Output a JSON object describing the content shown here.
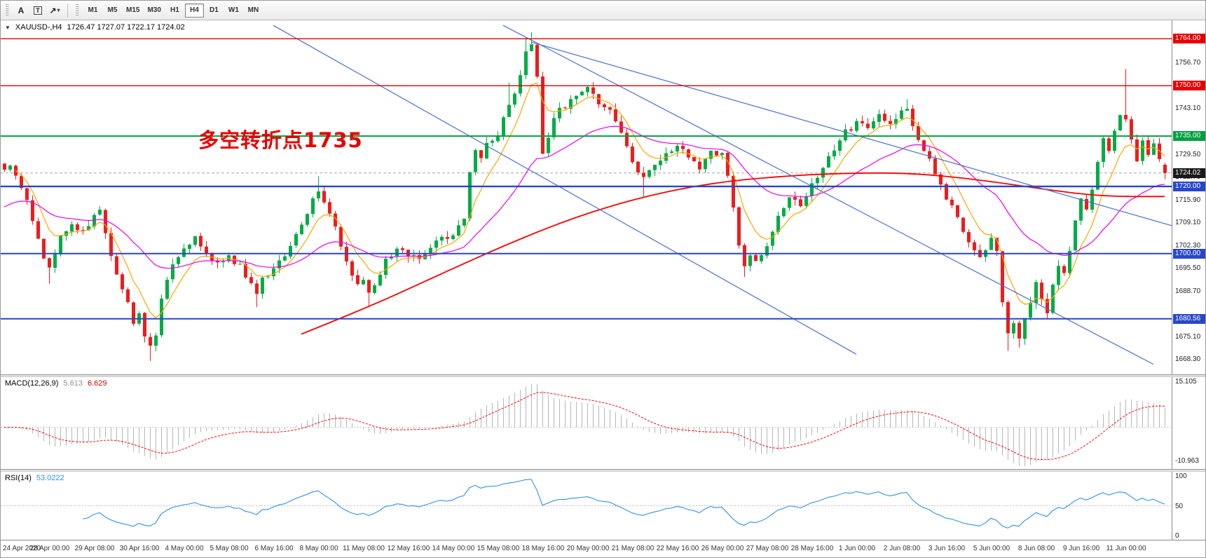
{
  "toolbar": {
    "tools": [
      {
        "name": "text-tool",
        "label": "A"
      },
      {
        "name": "label-tool",
        "label": "T"
      },
      {
        "name": "arrows-tool",
        "label": "↗"
      }
    ],
    "timeframes": [
      {
        "label": "M1"
      },
      {
        "label": "M5"
      },
      {
        "label": "M15"
      },
      {
        "label": "M30"
      },
      {
        "label": "H1"
      },
      {
        "label": "H4",
        "active": true
      },
      {
        "label": "D1"
      },
      {
        "label": "W1"
      },
      {
        "label": "MN"
      }
    ]
  },
  "chart": {
    "symbol_period": "XAUUSD-,H4",
    "ohlc_text": "1726.47 1727.07 1722.17 1724.02",
    "annotation": {
      "text": "多空转折点1735",
      "color": "#e80000"
    },
    "scale": {
      "price_min": 1664.0,
      "price_max": 1769.5
    },
    "colors": {
      "candle_up": "#00ad45",
      "candle_down": "#ee1c1c",
      "ma_fast": "#ffa500",
      "ma_mid": "#ee00ee",
      "ma_slow": "#ff0000",
      "trendline": "#4a6fd0",
      "macd_hist": "#b6b6b6",
      "macd_signal": "#ff0000",
      "rsi_line": "#3090e8"
    },
    "levels": [
      {
        "price": 1764.0,
        "label": "1764.00",
        "color": "#e60000",
        "width": 1.4
      },
      {
        "price": 1750.0,
        "label": "1750.00",
        "color": "#e60000",
        "width": 1.4
      },
      {
        "price": 1735.0,
        "label": "1735.00",
        "color": "#00a040",
        "width": 2
      },
      {
        "price": 1720.0,
        "label": "1720.00",
        "color": "#2847c8",
        "width": 2.4
      },
      {
        "price": 1700.0,
        "label": "1700.00",
        "color": "#2847c8",
        "width": 2
      },
      {
        "price": 1680.56,
        "label": "1680.56",
        "color": "#2847c8",
        "width": 2
      }
    ],
    "bid": {
      "price": 1724.02,
      "label": "1724.02",
      "color": "#1a1a1a"
    },
    "trendlines": [
      {
        "i1": 48,
        "p1": 1768,
        "i2": 152,
        "p2": 1670
      },
      {
        "i1": 89,
        "p1": 1768,
        "i2": 205,
        "p2": 1667
      },
      {
        "i1": 94,
        "p1": 1763,
        "i2": 211,
        "p2": 1707
      }
    ],
    "axis": {
      "price_ticks": [
        1756.7,
        1743.1,
        1729.5,
        1722.7,
        1715.9,
        1709.1,
        1702.3,
        1695.5,
        1688.7,
        1675.1,
        1668.3
      ],
      "time_labels": [
        {
          "index": 0,
          "label": "24 Apr 2020"
        },
        {
          "index": 8,
          "label": "28 Apr 00:00"
        },
        {
          "index": 16,
          "label": "29 Apr 08:00"
        },
        {
          "index": 24,
          "label": "30 Apr 16:00"
        },
        {
          "index": 32,
          "label": "4 May 00:00"
        },
        {
          "index": 40,
          "label": "5 May 08:00"
        },
        {
          "index": 48,
          "label": "6 May 16:00"
        },
        {
          "index": 56,
          "label": "8 May 00:00"
        },
        {
          "index": 64,
          "label": "11 May 08:00"
        },
        {
          "index": 72,
          "label": "12 May 16:00"
        },
        {
          "index": 80,
          "label": "14 May 00:00"
        },
        {
          "index": 88,
          "label": "15 May 08:00"
        },
        {
          "index": 96,
          "label": "18 May 16:00"
        },
        {
          "index": 104,
          "label": "20 May 00:00"
        },
        {
          "index": 112,
          "label": "21 May 08:00"
        },
        {
          "index": 120,
          "label": "22 May 16:00"
        },
        {
          "index": 128,
          "label": "26 May 00:00"
        },
        {
          "index": 136,
          "label": "27 May 08:00"
        },
        {
          "index": 144,
          "label": "28 May 16:00"
        },
        {
          "index": 152,
          "label": "1 Jun 00:00"
        },
        {
          "index": 160,
          "label": "2 Jun 08:00"
        },
        {
          "index": 168,
          "label": "3 Jun 16:00"
        },
        {
          "index": 176,
          "label": "5 Jun 00:00"
        },
        {
          "index": 184,
          "label": "8 Jun 08:00"
        },
        {
          "index": 192,
          "label": "9 Jun 16:00"
        },
        {
          "index": 200,
          "label": "11 Jun 00:00"
        }
      ]
    }
  },
  "macd": {
    "name": "MACD(12,26,9)",
    "value_hist": "5.613",
    "value_signal": "6.629",
    "params": {
      "fast": 12,
      "slow": 26,
      "signal": 9
    },
    "axis_labels": [
      {
        "value": 15.105,
        "text": "15.105"
      },
      {
        "value": -10.963,
        "text": "-10.963"
      }
    ]
  },
  "rsi": {
    "name": "RSI(14)",
    "value": "53.0222",
    "period": 14,
    "level_line": 50,
    "axis_labels": [
      {
        "value": 100,
        "text": "100"
      },
      {
        "value": 50,
        "text": "50"
      },
      {
        "value": 0,
        "text": "0"
      }
    ]
  },
  "chart_data": {
    "type": "candlestick",
    "symbol": "XAUUSD",
    "timeframe": "H4",
    "candle_count": 208,
    "visible_range": {
      "start": "24 Apr 2020",
      "end": "11 Jun 2020"
    },
    "price_axis_range": [
      1664.0,
      1769.5
    ],
    "last_candle": {
      "open": 1726.47,
      "high": 1727.07,
      "low": 1722.17,
      "close": 1724.02
    },
    "close_anchors": [
      [
        0,
        1725
      ],
      [
        1,
        1727
      ],
      [
        2,
        1723
      ],
      [
        3,
        1719
      ],
      [
        4,
        1715
      ],
      [
        5,
        1710
      ],
      [
        6,
        1705
      ],
      [
        7,
        1698
      ],
      [
        8,
        1696
      ],
      [
        9,
        1700
      ],
      [
        10,
        1705
      ],
      [
        12,
        1709
      ],
      [
        14,
        1706
      ],
      [
        16,
        1711
      ],
      [
        17,
        1713
      ],
      [
        18,
        1707
      ],
      [
        19,
        1700
      ],
      [
        20,
        1694
      ],
      [
        21,
        1689
      ],
      [
        22,
        1685
      ],
      [
        23,
        1680
      ],
      [
        24,
        1682
      ],
      [
        25,
        1675
      ],
      [
        26,
        1672
      ],
      [
        27,
        1676
      ],
      [
        28,
        1686
      ],
      [
        29,
        1692
      ],
      [
        30,
        1696
      ],
      [
        31,
        1699
      ],
      [
        32,
        1702
      ],
      [
        34,
        1705
      ],
      [
        36,
        1700
      ],
      [
        38,
        1697
      ],
      [
        40,
        1699
      ],
      [
        42,
        1696
      ],
      [
        44,
        1691
      ],
      [
        45,
        1688
      ],
      [
        46,
        1692
      ],
      [
        48,
        1696
      ],
      [
        50,
        1700
      ],
      [
        52,
        1706
      ],
      [
        54,
        1712
      ],
      [
        55,
        1717
      ],
      [
        56,
        1719
      ],
      [
        57,
        1716
      ],
      [
        58,
        1712
      ],
      [
        59,
        1708
      ],
      [
        60,
        1702
      ],
      [
        61,
        1697
      ],
      [
        62,
        1694
      ],
      [
        63,
        1690
      ],
      [
        64,
        1692
      ],
      [
        65,
        1688
      ],
      [
        66,
        1691
      ],
      [
        67,
        1694
      ],
      [
        68,
        1698
      ],
      [
        70,
        1701
      ],
      [
        72,
        1700
      ],
      [
        74,
        1698
      ],
      [
        76,
        1702
      ],
      [
        78,
        1704
      ],
      [
        80,
        1706
      ],
      [
        82,
        1710
      ],
      [
        83,
        1725
      ],
      [
        84,
        1730
      ],
      [
        85,
        1728
      ],
      [
        86,
        1732
      ],
      [
        88,
        1736
      ],
      [
        89,
        1741
      ],
      [
        90,
        1744
      ],
      [
        91,
        1747
      ],
      [
        92,
        1753
      ],
      [
        93,
        1760
      ],
      [
        94,
        1762
      ],
      [
        95,
        1752
      ],
      [
        96,
        1729
      ],
      [
        97,
        1735
      ],
      [
        98,
        1741
      ],
      [
        100,
        1744
      ],
      [
        102,
        1747
      ],
      [
        104,
        1750
      ],
      [
        105,
        1748
      ],
      [
        106,
        1745
      ],
      [
        108,
        1742
      ],
      [
        110,
        1736
      ],
      [
        112,
        1728
      ],
      [
        114,
        1722
      ],
      [
        116,
        1727
      ],
      [
        118,
        1730
      ],
      [
        120,
        1732
      ],
      [
        122,
        1729
      ],
      [
        124,
        1726
      ],
      [
        126,
        1730
      ],
      [
        128,
        1729
      ],
      [
        129,
        1724
      ],
      [
        130,
        1714
      ],
      [
        131,
        1703
      ],
      [
        132,
        1697
      ],
      [
        133,
        1700
      ],
      [
        134,
        1697
      ],
      [
        136,
        1703
      ],
      [
        138,
        1711
      ],
      [
        140,
        1717
      ],
      [
        142,
        1715
      ],
      [
        144,
        1721
      ],
      [
        146,
        1726
      ],
      [
        148,
        1731
      ],
      [
        150,
        1736
      ],
      [
        152,
        1739
      ],
      [
        154,
        1737
      ],
      [
        156,
        1741
      ],
      [
        158,
        1739
      ],
      [
        160,
        1742
      ],
      [
        161,
        1744
      ],
      [
        162,
        1738
      ],
      [
        164,
        1731
      ],
      [
        166,
        1724
      ],
      [
        168,
        1717
      ],
      [
        170,
        1710
      ],
      [
        172,
        1703
      ],
      [
        174,
        1698
      ],
      [
        175,
        1701
      ],
      [
        176,
        1704
      ],
      [
        177,
        1700
      ],
      [
        178,
        1686
      ],
      [
        179,
        1676
      ],
      [
        180,
        1680
      ],
      [
        181,
        1675
      ],
      [
        182,
        1681
      ],
      [
        183,
        1685
      ],
      [
        184,
        1691
      ],
      [
        185,
        1687
      ],
      [
        186,
        1683
      ],
      [
        187,
        1690
      ],
      [
        188,
        1697
      ],
      [
        189,
        1694
      ],
      [
        190,
        1701
      ],
      [
        191,
        1709
      ],
      [
        192,
        1716
      ],
      [
        193,
        1713
      ],
      [
        194,
        1720
      ],
      [
        195,
        1727
      ],
      [
        196,
        1734
      ],
      [
        197,
        1730
      ],
      [
        198,
        1737
      ],
      [
        199,
        1742
      ],
      [
        200,
        1740
      ],
      [
        201,
        1734
      ],
      [
        202,
        1728
      ],
      [
        203,
        1733
      ],
      [
        204,
        1729
      ],
      [
        205,
        1732
      ],
      [
        206,
        1729
      ],
      [
        207,
        1724.02
      ]
    ],
    "wick_overrides": {
      "8": {
        "low": 1691
      },
      "26": {
        "low": 1668
      },
      "45": {
        "low": 1684
      },
      "56": {
        "high": 1723
      },
      "65": {
        "low": 1684
      },
      "90": {
        "high": 1751
      },
      "93": {
        "high": 1764.5
      },
      "94": {
        "high": 1766
      },
      "114": {
        "low": 1717
      },
      "132": {
        "low": 1693
      },
      "161": {
        "high": 1746
      },
      "179": {
        "low": 1671
      },
      "181": {
        "low": 1672
      },
      "200": {
        "high": 1755
      }
    },
    "red_ma_points": [
      [
        53,
        1676
      ],
      [
        65,
        1684
      ],
      [
        78,
        1694
      ],
      [
        90,
        1703
      ],
      [
        102,
        1711
      ],
      [
        114,
        1717
      ],
      [
        126,
        1721
      ],
      [
        138,
        1723
      ],
      [
        150,
        1724
      ],
      [
        162,
        1724
      ],
      [
        174,
        1722
      ],
      [
        186,
        1719
      ],
      [
        196,
        1717
      ],
      [
        207,
        1717
      ]
    ],
    "overlay_params": {
      "ma_fast_alpha": 0.25,
      "ma_mid_alpha": 0.07,
      "ma_mid_seed": 1713
    }
  }
}
